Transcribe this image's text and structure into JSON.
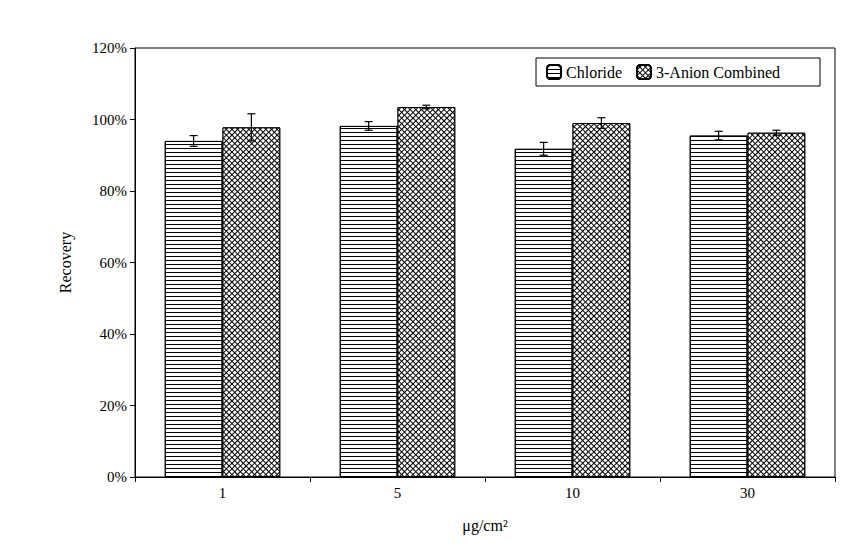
{
  "chart_data": {
    "type": "bar",
    "xlabel": "μg/cm²",
    "ylabel": "Recovery",
    "categories": [
      "1",
      "5",
      "10",
      "30"
    ],
    "series": [
      {
        "name": "Chloride",
        "color": "#000000",
        "values": [
          94.0,
          98.2,
          91.8,
          95.5
        ],
        "errors": [
          1.5,
          1.2,
          1.8,
          1.2
        ]
      },
      {
        "name": "3-Anion Combined",
        "color": "#000000",
        "values": [
          97.8,
          103.5,
          99.0,
          96.3
        ],
        "errors": [
          3.8,
          0.5,
          1.5,
          0.7
        ]
      }
    ],
    "ylim": [
      0,
      120
    ],
    "yticks": [
      {
        "value": 0,
        "label": "0%"
      },
      {
        "value": 20,
        "label": "20%"
      },
      {
        "value": 40,
        "label": "40%"
      },
      {
        "value": 60,
        "label": "60%"
      },
      {
        "value": 80,
        "label": "80%"
      },
      {
        "value": 100,
        "label": "100%"
      },
      {
        "value": 120,
        "label": "120%"
      }
    ],
    "grid": false,
    "legend": "upper right"
  }
}
